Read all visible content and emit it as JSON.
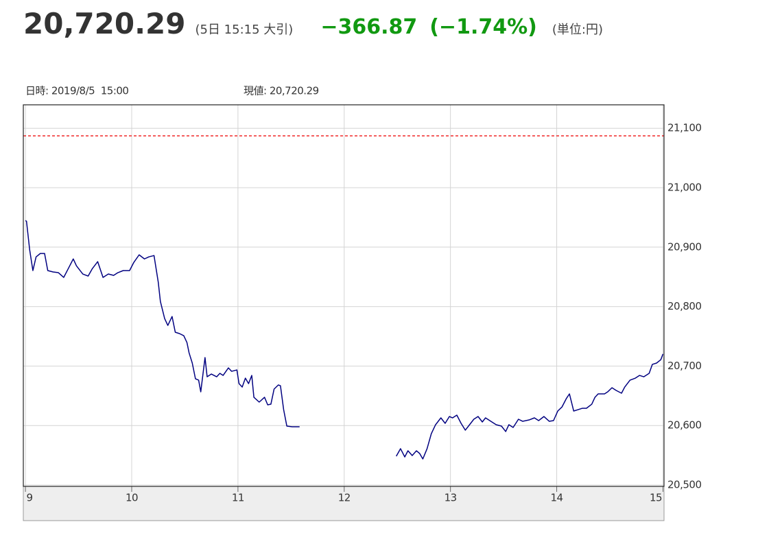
{
  "header": {
    "price": "20,720.29",
    "time_note": "(5日 15:15 大引)",
    "change": "−366.87",
    "change_pct": "(−1.74%)",
    "unit": "(単位:円)"
  },
  "chart_data": {
    "type": "line",
    "info_time": "日時: 2019/8/5  15:00",
    "info_value": "現値: 20,720.29",
    "color": "#000080",
    "x": [
      9.0,
      9.01,
      9.04,
      9.07,
      9.1,
      9.14,
      9.18,
      9.21,
      9.26,
      9.31,
      9.36,
      9.41,
      9.45,
      9.48,
      9.54,
      9.59,
      9.63,
      9.68,
      9.73,
      9.78,
      9.83,
      9.87,
      9.92,
      9.98,
      10.02,
      10.07,
      10.12,
      10.16,
      10.21,
      10.25,
      10.27,
      10.31,
      10.34,
      10.38,
      10.41,
      10.45,
      10.49,
      10.52,
      10.54,
      10.57,
      10.6,
      10.63,
      10.65,
      10.69,
      10.71,
      10.75,
      10.8,
      10.83,
      10.86,
      10.91,
      10.94,
      10.99,
      11.01,
      11.04,
      11.07,
      11.1,
      11.13,
      11.15,
      11.2,
      11.25,
      11.28,
      11.31,
      11.34,
      11.38,
      11.4,
      11.43,
      11.46,
      11.51,
      11.58,
      12.0,
      12.49,
      12.53,
      12.57,
      12.6,
      12.64,
      12.68,
      12.71,
      12.74,
      12.78,
      12.82,
      12.86,
      12.91,
      12.95,
      12.99,
      13.02,
      13.06,
      13.1,
      13.14,
      13.19,
      13.22,
      13.26,
      13.3,
      13.33,
      13.38,
      13.43,
      13.48,
      13.52,
      13.55,
      13.59,
      13.64,
      13.68,
      13.74,
      13.79,
      13.83,
      13.88,
      13.93,
      13.97,
      14.01,
      14.05,
      14.09,
      14.12,
      14.16,
      14.2,
      14.24,
      14.28,
      14.33,
      14.36,
      14.39,
      14.45,
      14.48,
      14.52,
      14.56,
      14.61,
      14.64,
      14.69,
      14.74,
      14.78,
      14.82,
      14.87,
      14.9,
      14.94,
      14.98,
      15.0
    ],
    "values": [
      20944.7,
      20943.5,
      20895.1,
      20860.6,
      20883.6,
      20889.4,
      20889.4,
      20860.6,
      20858.3,
      20857.1,
      20849.1,
      20866.3,
      20880.2,
      20868.6,
      20854.8,
      20851.4,
      20864.0,
      20875.6,
      20849.1,
      20854.8,
      20852.5,
      20857.1,
      20860.6,
      20860.6,
      20874.4,
      20887.1,
      20880.2,
      20883.6,
      20885.9,
      20841.0,
      20808.7,
      20779.9,
      20768.4,
      20783.4,
      20756.9,
      20754.6,
      20751.1,
      20739.6,
      20722.3,
      20705.1,
      20678.6,
      20676.3,
      20656.7,
      20714.3,
      20682.0,
      20686.6,
      20682.0,
      20687.8,
      20684.3,
      20697.0,
      20691.2,
      20693.5,
      20670.5,
      20664.7,
      20679.7,
      20670.5,
      20684.3,
      20647.5,
      20639.4,
      20647.5,
      20634.8,
      20635.9,
      20661.3,
      20668.2,
      20667.0,
      20626.7,
      20599.1,
      20597.9,
      20597.9,
      null,
      20548.4,
      20561.1,
      20547.2,
      20557.6,
      20549.5,
      20557.6,
      20553.0,
      20543.8,
      20561.1,
      20586.4,
      20601.4,
      20612.9,
      20603.7,
      20615.2,
      20612.9,
      20617.5,
      20603.7,
      20592.2,
      20603.7,
      20610.6,
      20615.2,
      20606.0,
      20612.9,
      20607.1,
      20601.4,
      20599.1,
      20589.9,
      20601.4,
      20596.8,
      20610.6,
      20607.1,
      20609.4,
      20612.9,
      20608.3,
      20615.2,
      20607.1,
      20608.3,
      20624.4,
      20631.3,
      20645.2,
      20653.2,
      20624.4,
      20626.7,
      20629.0,
      20629.0,
      20635.9,
      20647.5,
      20653.2,
      20653.2,
      20656.7,
      20663.6,
      20659.0,
      20654.4,
      20664.7,
      20676.3,
      20679.7,
      20684.3,
      20682.0,
      20687.8,
      20702.8,
      20705.1,
      20710.8,
      20720.29
    ],
    "reference_line": {
      "value": 21087.16,
      "color": "#ee0000"
    },
    "xlim": [
      8.98,
      15.01
    ],
    "xticks": [
      9,
      10,
      11,
      12,
      13,
      14,
      15
    ],
    "ylim": [
      20497.7,
      21139.4
    ],
    "yticks": [
      {
        "value": 20500,
        "label": "20,500"
      },
      {
        "value": 20600,
        "label": "20,600"
      },
      {
        "value": 20700,
        "label": "20,700"
      },
      {
        "value": 20800,
        "label": "20,800"
      },
      {
        "value": 20900,
        "label": "20,900"
      },
      {
        "value": 21000,
        "label": "21,000"
      },
      {
        "value": 21100,
        "label": "21,100"
      }
    ],
    "grid": true
  }
}
